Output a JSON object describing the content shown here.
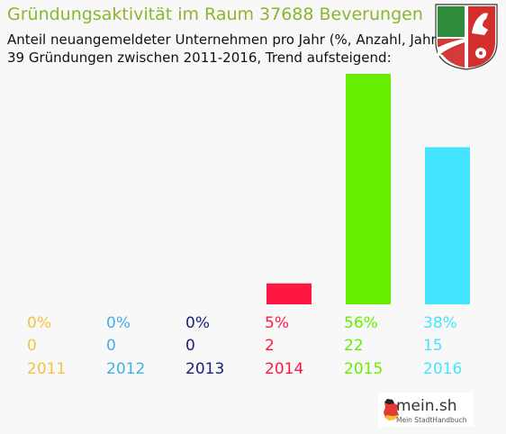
{
  "chart_data": {
    "type": "bar",
    "title": "Gründungsaktivität im Raum 37688 Beverungen",
    "subtitle_1": "Anteil neuangemeldeter Unternehmen pro Jahr (%, Anzahl, Jahr)",
    "subtitle_2": "39 Gründungen zwischen 2011-2016, Trend aufsteigend:",
    "categories": [
      "2011",
      "2012",
      "2013",
      "2014",
      "2015",
      "2016"
    ],
    "counts": [
      0,
      0,
      0,
      2,
      22,
      15
    ],
    "percent_labels": [
      "0%",
      "0%",
      "0%",
      "5%",
      "56%",
      "38%"
    ],
    "count_labels": [
      "0",
      "0",
      "0",
      "2",
      "22",
      "15"
    ],
    "colors": [
      "#f5c342",
      "#42b0e6",
      "#1a237e",
      "#ff1744",
      "#66ee00",
      "#44e5ff"
    ],
    "title_color": "#8db52e",
    "ylim": [
      0,
      22
    ]
  },
  "branding": {
    "coat_of_arms": "coat-of-arms-nrw",
    "logo_main": "mein.sh",
    "logo_sub": "Mein StadtHandbuch"
  }
}
